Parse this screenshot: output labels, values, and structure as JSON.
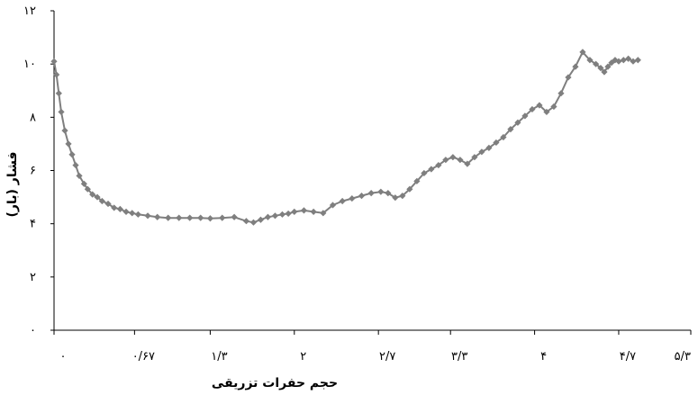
{
  "chart_data": {
    "type": "line",
    "title": "",
    "xlabel": "حجم حفرات تزریقی",
    "ylabel": "فشار (بار)",
    "xlim": [
      0,
      5.3
    ],
    "ylim": [
      0,
      12
    ],
    "x_ticks": [
      {
        "value": 0,
        "label": "۰"
      },
      {
        "value": 0.67,
        "label": "۰/۶۷"
      },
      {
        "value": 1.3,
        "label": "۱/۳"
      },
      {
        "value": 2,
        "label": "۲"
      },
      {
        "value": 2.7,
        "label": "۲/۷"
      },
      {
        "value": 3.3,
        "label": "۳/۳"
      },
      {
        "value": 4,
        "label": "۴"
      },
      {
        "value": 4.7,
        "label": "۴/۷"
      },
      {
        "value": 5.3,
        "label": "۵/۳"
      }
    ],
    "y_ticks": [
      {
        "value": 0,
        "label": "۰"
      },
      {
        "value": 2,
        "label": "۲"
      },
      {
        "value": 4,
        "label": "۴"
      },
      {
        "value": 6,
        "label": "۶"
      },
      {
        "value": 8,
        "label": "۸"
      },
      {
        "value": 10,
        "label": "۱۰"
      },
      {
        "value": 12,
        "label": "۱۲"
      }
    ],
    "grid": false,
    "legend": "none",
    "series_color": "#7f7f7f",
    "marker": "diamond",
    "series": [
      {
        "x": [
          0.0,
          0.02,
          0.04,
          0.06,
          0.09,
          0.12,
          0.15,
          0.18,
          0.21,
          0.25,
          0.28,
          0.32,
          0.36,
          0.4,
          0.45,
          0.5,
          0.55,
          0.6,
          0.65,
          0.7,
          0.78,
          0.86,
          0.95,
          1.04,
          1.13,
          1.22,
          1.3,
          1.4,
          1.5,
          1.6,
          1.66,
          1.72,
          1.78,
          1.84,
          1.9,
          1.95,
          2.0,
          2.08,
          2.16,
          2.24,
          2.32,
          2.4,
          2.48,
          2.56,
          2.64,
          2.72,
          2.78,
          2.84,
          2.9,
          2.96,
          3.02,
          3.08,
          3.14,
          3.2,
          3.26,
          3.32,
          3.38,
          3.44,
          3.5,
          3.56,
          3.62,
          3.68,
          3.74,
          3.8,
          3.86,
          3.92,
          3.98,
          4.04,
          4.1,
          4.16,
          4.22,
          4.28,
          4.34,
          4.4,
          4.46,
          4.51,
          4.55,
          4.58,
          4.61,
          4.64,
          4.67,
          4.7,
          4.74,
          4.78,
          4.82,
          4.86
        ],
        "y": [
          10.1,
          9.6,
          8.9,
          8.2,
          7.5,
          7.0,
          6.6,
          6.2,
          5.8,
          5.5,
          5.3,
          5.1,
          5.0,
          4.85,
          4.75,
          4.6,
          4.55,
          4.45,
          4.4,
          4.35,
          4.3,
          4.25,
          4.22,
          4.22,
          4.22,
          4.22,
          4.2,
          4.22,
          4.25,
          4.1,
          4.05,
          4.15,
          4.25,
          4.3,
          4.35,
          4.38,
          4.45,
          4.5,
          4.45,
          4.4,
          4.7,
          4.85,
          4.95,
          5.05,
          5.15,
          5.2,
          5.15,
          4.98,
          5.05,
          5.3,
          5.6,
          5.9,
          6.05,
          6.2,
          6.4,
          6.5,
          6.4,
          6.25,
          6.5,
          6.7,
          6.85,
          7.05,
          7.25,
          7.55,
          7.8,
          8.05,
          8.3,
          8.45,
          8.2,
          8.4,
          8.9,
          9.5,
          9.9,
          10.45,
          10.15,
          10.0,
          9.85,
          9.7,
          9.9,
          10.05,
          10.15,
          10.1,
          10.15,
          10.2,
          10.1,
          10.15
        ]
      }
    ]
  }
}
